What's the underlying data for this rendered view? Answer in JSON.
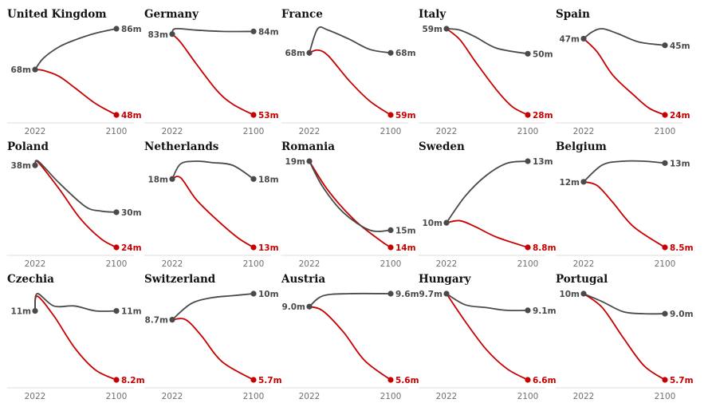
{
  "colors": {
    "upper": "#4a4a4a",
    "lower": "#c70000",
    "axis": "#dcdcdc",
    "tick": "#707070"
  },
  "chart_data": [
    {
      "type": "line",
      "title": "United Kingdom",
      "x": [
        2022,
        2100
      ],
      "xticks": [
        "2022",
        "2100"
      ],
      "series": [
        {
          "name": "upper",
          "values": [
            [
              2022,
              68
            ],
            [
              2030,
              73
            ],
            [
              2045,
              78
            ],
            [
              2060,
              81
            ],
            [
              2080,
              84
            ],
            [
              2100,
              86
            ]
          ],
          "start_label": "68m",
          "end_label": "86m"
        },
        {
          "name": "lower",
          "values": [
            [
              2022,
              68
            ],
            [
              2030,
              67.6
            ],
            [
              2045,
              65
            ],
            [
              2060,
              60
            ],
            [
              2080,
              53
            ],
            [
              2100,
              48
            ]
          ],
          "start_label": "",
          "end_label": "48m"
        }
      ]
    },
    {
      "type": "line",
      "title": "Germany",
      "x": [
        2022,
        2100
      ],
      "xticks": [
        "2022",
        "2100"
      ],
      "series": [
        {
          "name": "upper",
          "values": [
            [
              2022,
              83
            ],
            [
              2025,
              85
            ],
            [
              2045,
              84.5
            ],
            [
              2070,
              84
            ],
            [
              2100,
              84
            ]
          ],
          "start_label": "83m",
          "end_label": "84m"
        },
        {
          "name": "lower",
          "values": [
            [
              2022,
              83
            ],
            [
              2030,
              80
            ],
            [
              2045,
              72
            ],
            [
              2065,
              62
            ],
            [
              2080,
              57
            ],
            [
              2100,
              53
            ]
          ],
          "start_label": "",
          "end_label": "53m"
        }
      ]
    },
    {
      "type": "line",
      "title": "France",
      "x": [
        2022,
        2100
      ],
      "xticks": [
        "2022",
        "2100"
      ],
      "series": [
        {
          "name": "upper",
          "values": [
            [
              2022,
              68
            ],
            [
              2030,
              71.5
            ],
            [
              2040,
              71.3
            ],
            [
              2060,
              70
            ],
            [
              2080,
              68.5
            ],
            [
              2100,
              68
            ]
          ],
          "start_label": "68m",
          "end_label": "68m"
        },
        {
          "name": "lower",
          "values": [
            [
              2022,
              68
            ],
            [
              2030,
              68.4
            ],
            [
              2040,
              67.6
            ],
            [
              2060,
              64
            ],
            [
              2080,
              61
            ],
            [
              2100,
              59
            ]
          ],
          "start_label": "",
          "end_label": "59m"
        }
      ]
    },
    {
      "type": "line",
      "title": "Italy",
      "x": [
        2022,
        2100
      ],
      "xticks": [
        "2022",
        "2100"
      ],
      "series": [
        {
          "name": "upper",
          "values": [
            [
              2022,
              59
            ],
            [
              2035,
              58.5
            ],
            [
              2050,
              56
            ],
            [
              2070,
              52
            ],
            [
              2100,
              50
            ]
          ],
          "start_label": "59m",
          "end_label": "50m"
        },
        {
          "name": "lower",
          "values": [
            [
              2022,
              59
            ],
            [
              2035,
              55
            ],
            [
              2050,
              47
            ],
            [
              2070,
              37
            ],
            [
              2085,
              31
            ],
            [
              2100,
              28
            ]
          ],
          "start_label": "",
          "end_label": "28m"
        }
      ]
    },
    {
      "type": "line",
      "title": "Spain",
      "x": [
        2022,
        2100
      ],
      "xticks": [
        "2022",
        "2100"
      ],
      "series": [
        {
          "name": "upper",
          "values": [
            [
              2022,
              47
            ],
            [
              2030,
              49
            ],
            [
              2040,
              50
            ],
            [
              2055,
              48.5
            ],
            [
              2075,
              46
            ],
            [
              2100,
              45
            ]
          ],
          "start_label": "47m",
          "end_label": "45m"
        },
        {
          "name": "lower",
          "values": [
            [
              2022,
              47
            ],
            [
              2035,
              43
            ],
            [
              2050,
              36
            ],
            [
              2070,
              30
            ],
            [
              2085,
              26
            ],
            [
              2100,
              24
            ]
          ],
          "start_label": "",
          "end_label": "24m"
        }
      ]
    },
    {
      "type": "line",
      "title": "Poland",
      "x": [
        2022,
        2100
      ],
      "xticks": [
        "2022",
        "2100"
      ],
      "series": [
        {
          "name": "upper",
          "values": [
            [
              2022,
              38
            ],
            [
              2025,
              38.7
            ],
            [
              2045,
              35
            ],
            [
              2070,
              31
            ],
            [
              2085,
              30.2
            ],
            [
              2100,
              30
            ]
          ],
          "start_label": "38m",
          "end_label": "30m"
        },
        {
          "name": "lower",
          "values": [
            [
              2022,
              38
            ],
            [
              2025,
              38.5
            ],
            [
              2045,
              34
            ],
            [
              2065,
              29
            ],
            [
              2085,
              25.5
            ],
            [
              2100,
              24
            ]
          ],
          "start_label": "",
          "end_label": "24m"
        }
      ]
    },
    {
      "type": "line",
      "title": "Netherlands",
      "x": [
        2022,
        2100
      ],
      "xticks": [
        "2022",
        "2100"
      ],
      "series": [
        {
          "name": "upper",
          "values": [
            [
              2022,
              18
            ],
            [
              2030,
              19.1
            ],
            [
              2045,
              19.3
            ],
            [
              2060,
              19.2
            ],
            [
              2080,
              19
            ],
            [
              2100,
              18
            ]
          ],
          "start_label": "18m",
          "end_label": "18m"
        },
        {
          "name": "lower",
          "values": [
            [
              2022,
              18
            ],
            [
              2030,
              18.1
            ],
            [
              2045,
              16.5
            ],
            [
              2065,
              15
            ],
            [
              2085,
              13.7
            ],
            [
              2100,
              13
            ]
          ],
          "start_label": "",
          "end_label": "13m"
        }
      ]
    },
    {
      "type": "line",
      "title": "Romania",
      "x": [
        2022,
        2100
      ],
      "xticks": [
        "2022",
        "2100"
      ],
      "series": [
        {
          "name": "upper",
          "values": [
            [
              2022,
              19
            ],
            [
              2035,
              17.5
            ],
            [
              2055,
              16
            ],
            [
              2080,
              15
            ],
            [
              2100,
              15
            ]
          ],
          "start_label": "19m",
          "end_label": "15m"
        },
        {
          "name": "lower",
          "values": [
            [
              2022,
              19
            ],
            [
              2040,
              17.3
            ],
            [
              2065,
              15.6
            ],
            [
              2090,
              14.4
            ],
            [
              2100,
              14
            ]
          ],
          "start_label": "",
          "end_label": "14m"
        }
      ]
    },
    {
      "type": "line",
      "title": "Sweden",
      "x": [
        2022,
        2100
      ],
      "xticks": [
        "2022",
        "2100"
      ],
      "series": [
        {
          "name": "upper",
          "values": [
            [
              2022,
              10
            ],
            [
              2040,
              11.3
            ],
            [
              2060,
              12.3
            ],
            [
              2080,
              12.9
            ],
            [
              2100,
              13
            ]
          ],
          "start_label": "10m",
          "end_label": "13m"
        },
        {
          "name": "lower",
          "values": [
            [
              2022,
              10
            ],
            [
              2035,
              10.1
            ],
            [
              2050,
              9.8
            ],
            [
              2070,
              9.3
            ],
            [
              2100,
              8.8
            ]
          ],
          "start_label": "",
          "end_label": "8.8m"
        }
      ]
    },
    {
      "type": "line",
      "title": "Belgium",
      "x": [
        2022,
        2100
      ],
      "xticks": [
        "2022",
        "2100"
      ],
      "series": [
        {
          "name": "upper",
          "values": [
            [
              2022,
              12
            ],
            [
              2040,
              12.9
            ],
            [
              2060,
              13.1
            ],
            [
              2080,
              13.1
            ],
            [
              2100,
              13
            ]
          ],
          "start_label": "12m",
          "end_label": "13m"
        },
        {
          "name": "lower",
          "values": [
            [
              2022,
              12
            ],
            [
              2035,
              11.8
            ],
            [
              2050,
              10.9
            ],
            [
              2070,
              9.6
            ],
            [
              2100,
              8.5
            ]
          ],
          "start_label": "",
          "end_label": "8.5m"
        }
      ]
    },
    {
      "type": "line",
      "title": "Czechia",
      "x": [
        2022,
        2100
      ],
      "xticks": [
        "2022",
        "2100"
      ],
      "series": [
        {
          "name": "upper",
          "values": [
            [
              2022,
              11
            ],
            [
              2024,
              11.7
            ],
            [
              2040,
              11.2
            ],
            [
              2060,
              11.2
            ],
            [
              2080,
              11
            ],
            [
              2100,
              11
            ]
          ],
          "start_label": "11m",
          "end_label": "11m"
        },
        {
          "name": "lower",
          "values": [
            [
              2022,
              11
            ],
            [
              2024,
              11.6
            ],
            [
              2040,
              10.8
            ],
            [
              2060,
              9.5
            ],
            [
              2080,
              8.6
            ],
            [
              2100,
              8.2
            ]
          ],
          "start_label": "",
          "end_label": "8.2m"
        }
      ]
    },
    {
      "type": "line",
      "title": "Switzerland",
      "x": [
        2022,
        2100
      ],
      "xticks": [
        "2022",
        "2100"
      ],
      "series": [
        {
          "name": "upper",
          "values": [
            [
              2022,
              8.7
            ],
            [
              2040,
              9.5
            ],
            [
              2060,
              9.8
            ],
            [
              2080,
              9.9
            ],
            [
              2100,
              10
            ]
          ],
          "start_label": "8.7m",
          "end_label": "10m"
        },
        {
          "name": "lower",
          "values": [
            [
              2022,
              8.7
            ],
            [
              2035,
              8.7
            ],
            [
              2050,
              7.9
            ],
            [
              2070,
              6.6
            ],
            [
              2100,
              5.7
            ]
          ],
          "start_label": "",
          "end_label": "5.7m"
        }
      ]
    },
    {
      "type": "line",
      "title": "Austria",
      "x": [
        2022,
        2100
      ],
      "xticks": [
        "2022",
        "2100"
      ],
      "series": [
        {
          "name": "upper",
          "values": [
            [
              2022,
              9.0
            ],
            [
              2035,
              9.5
            ],
            [
              2060,
              9.6
            ],
            [
              2100,
              9.6
            ]
          ],
          "start_label": "9.0m",
          "end_label": "9.6m"
        },
        {
          "name": "lower",
          "values": [
            [
              2022,
              9.0
            ],
            [
              2035,
              8.8
            ],
            [
              2055,
              7.8
            ],
            [
              2075,
              6.5
            ],
            [
              2100,
              5.6
            ]
          ],
          "start_label": "",
          "end_label": "5.6m"
        }
      ]
    },
    {
      "type": "line",
      "title": "Hungary",
      "x": [
        2022,
        2100
      ],
      "xticks": [
        "2022",
        "2100"
      ],
      "series": [
        {
          "name": "upper",
          "values": [
            [
              2022,
              9.7
            ],
            [
              2040,
              9.3
            ],
            [
              2060,
              9.2
            ],
            [
              2080,
              9.1
            ],
            [
              2100,
              9.1
            ]
          ],
          "start_label": "9.7m",
          "end_label": "9.1m"
        },
        {
          "name": "lower",
          "values": [
            [
              2022,
              9.7
            ],
            [
              2040,
              8.7
            ],
            [
              2060,
              7.7
            ],
            [
              2080,
              7.0
            ],
            [
              2100,
              6.6
            ]
          ],
          "start_label": "",
          "end_label": "6.6m"
        }
      ]
    },
    {
      "type": "line",
      "title": "Portugal",
      "x": [
        2022,
        2100
      ],
      "xticks": [
        "2022",
        "2100"
      ],
      "series": [
        {
          "name": "upper",
          "values": [
            [
              2022,
              10
            ],
            [
              2040,
              9.6
            ],
            [
              2060,
              9.1
            ],
            [
              2080,
              9.0
            ],
            [
              2100,
              9.0
            ]
          ],
          "start_label": "10m",
          "end_label": "9.0m"
        },
        {
          "name": "lower",
          "values": [
            [
              2022,
              10
            ],
            [
              2040,
              9.3
            ],
            [
              2060,
              7.8
            ],
            [
              2080,
              6.4
            ],
            [
              2100,
              5.7
            ]
          ],
          "start_label": "",
          "end_label": "5.7m"
        }
      ]
    }
  ]
}
